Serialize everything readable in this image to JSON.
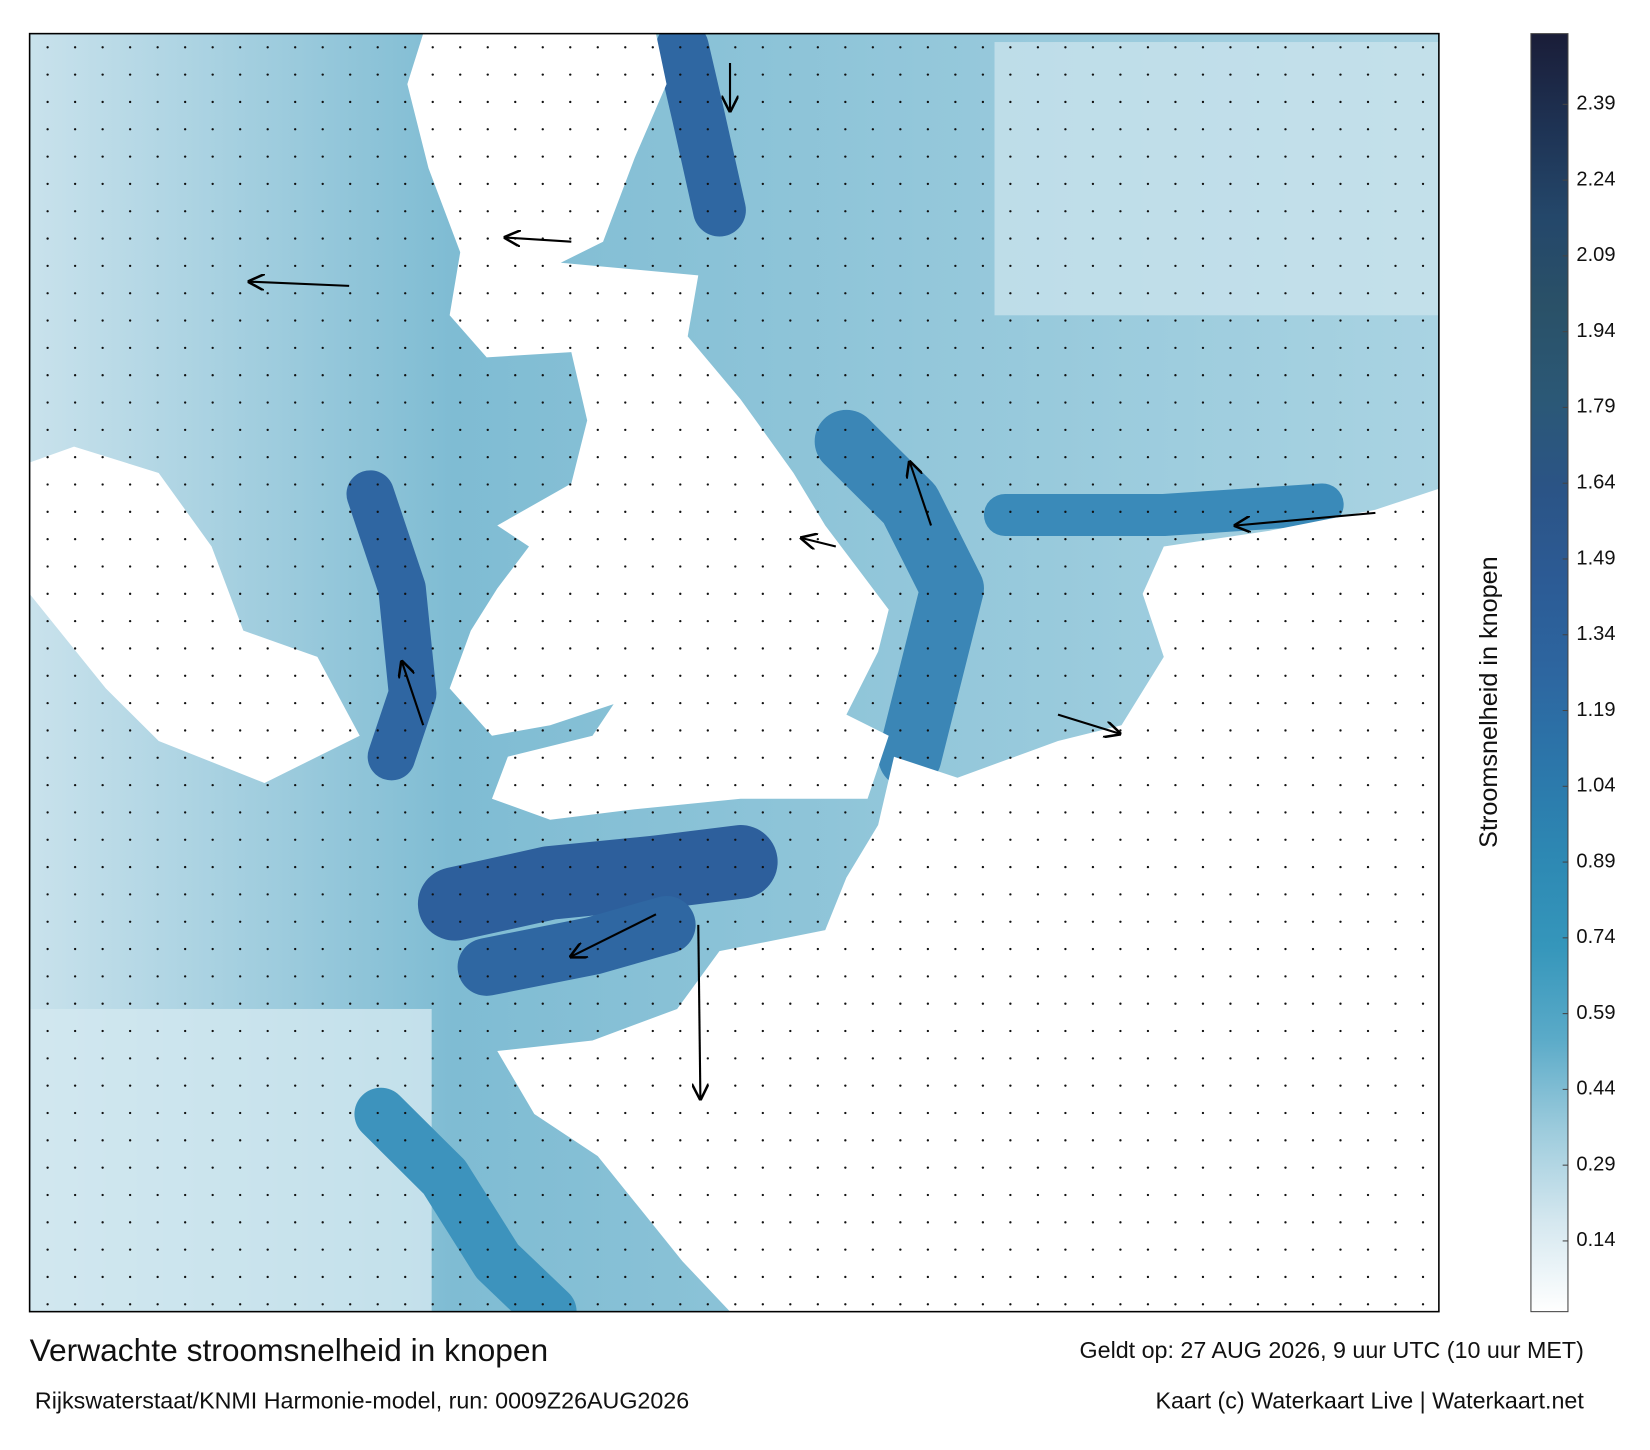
{
  "map": {
    "title": "Verwachte stroomsnelheid in knopen",
    "subtitle": "Rijkswaterstaat/KNMI Harmonie-model, run: 0009Z26AUG2026",
    "valid": "Geldt op: 27 AUG 2026, 9 uur UTC (10 uur MET)",
    "credit": "Kaart (c) Waterkaart Live | Waterkaart.net",
    "colorbar": {
      "label": "Stroomsnelheid in knopen",
      "clim": [
        0,
        2.53
      ],
      "ticks": [
        0.14,
        0.29,
        0.44,
        0.59,
        0.74,
        0.89,
        1.04,
        1.19,
        1.34,
        1.49,
        1.64,
        1.79,
        1.94,
        2.09,
        2.24,
        2.39
      ],
      "colormap": [
        "#ffffff",
        "#d4e7ef",
        "#9ccbdc",
        "#5aaac8",
        "#3596bb",
        "#2d88b3",
        "#2c76aa",
        "#2d66a0",
        "#2c5b95",
        "#2b5486",
        "#2b5876",
        "#2a5168",
        "#24476a",
        "#1e3253",
        "#1a1d38"
      ]
    }
  }
}
